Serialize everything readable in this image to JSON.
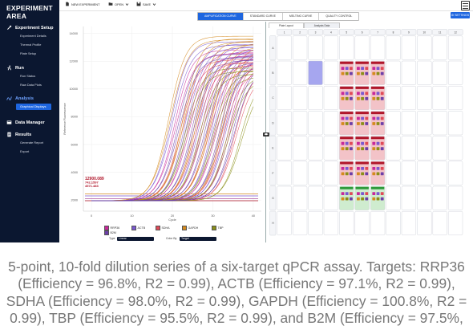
{
  "sidebar": {
    "title_line1": "EXPERIMENT",
    "title_line2": "AREA",
    "sections": [
      {
        "label": "Experiment Setup",
        "icon": "wrench-icon",
        "items": [
          {
            "label": "Experiment Details"
          },
          {
            "label": "Thermal Profile"
          },
          {
            "label": "Plate Setup"
          }
        ]
      },
      {
        "label": "Run",
        "icon": "run-icon",
        "items": [
          {
            "label": "Run Status"
          },
          {
            "label": "Raw Data Plots"
          }
        ]
      },
      {
        "label": "Analysis",
        "icon": "analysis-icon",
        "items": [
          {
            "label": "Graphical Displays",
            "active": true
          }
        ]
      },
      {
        "label": "Data Manager",
        "icon": "database-icon",
        "items": []
      },
      {
        "label": "Results",
        "icon": "results-icon",
        "items": [
          {
            "label": "Generate Report"
          },
          {
            "label": "Export"
          }
        ]
      }
    ]
  },
  "toolbar": {
    "new_label": "NEW EXPERIMENT",
    "open_label": "OPEN",
    "save_label": "SAVE",
    "menu_icon": "hamburger-icon"
  },
  "view_tabs": [
    {
      "label": "AMPLIFICATION CURVE",
      "active": true
    },
    {
      "label": "STANDARD CURVE",
      "active": false
    },
    {
      "label": "MELTING CURVE",
      "active": false
    },
    {
      "label": "QUALITY CONTROL",
      "active": false
    }
  ],
  "settings_label": "SETTINGS",
  "colors": {
    "accent": "#1e66e0",
    "sidebar": "#0b1730",
    "well_selected": "#a6a6ef",
    "red_row": "#f3c3c8",
    "green_row": "#cfeccf"
  },
  "chart_data": {
    "type": "line",
    "xlabel": "Cycle",
    "ylabel": "Reference Fluorescence",
    "x_ticks": [
      0,
      10,
      20,
      30,
      40
    ],
    "y_ticks": [
      2000,
      4000,
      6000,
      8000,
      10000,
      12000,
      14000
    ],
    "xlim": [
      -2,
      42
    ],
    "ylim": [
      1200,
      14500
    ],
    "threshold_labels": [
      "12900.089",
      "742.1597",
      "4571.483"
    ],
    "series": [
      {
        "name": "RRP36",
        "color": "#c8289a",
        "values_ct": [
          16.0,
          19.3,
          22.7,
          26.0,
          29.4
        ],
        "plateau": 12800
      },
      {
        "name": "ACTB",
        "color": "#7a58d0",
        "values_ct": [
          15.2,
          18.6,
          21.9,
          25.3,
          28.6
        ],
        "plateau": 13400
      },
      {
        "name": "SDHA",
        "color": "#e04a58",
        "values_ct": [
          17.5,
          20.9,
          24.2,
          27.6,
          30.9
        ],
        "plateau": 12100
      },
      {
        "name": "GAPDH",
        "color": "#d48a1e",
        "values_ct": [
          14.6,
          17.9,
          21.2,
          24.5,
          27.8
        ],
        "plateau": 13800
      },
      {
        "name": "TBP",
        "color": "#8a8f18",
        "values_ct": [
          18.6,
          22.0,
          25.4,
          28.8,
          32.2
        ],
        "plateau": 11500
      },
      {
        "name": "B2M",
        "color": "#6c3fa8",
        "values_ct": [
          16.8,
          20.2,
          23.6,
          27.0,
          30.4
        ],
        "plateau": 12500
      }
    ],
    "legend_row1": [
      "RRP36",
      "ACTB",
      "SDHA",
      "GAPDH",
      "TBP"
    ],
    "legend_row2": [
      "B2M"
    ]
  },
  "chart_controls": {
    "type_label": "Type",
    "type_value": "Linear",
    "color_by_label": "Color By",
    "color_by_value": "Target"
  },
  "plate": {
    "tabs": [
      {
        "label": "Plate Layout",
        "active": true
      },
      {
        "label": "Analysis Data",
        "active": false
      }
    ],
    "columns": [
      "1",
      "2",
      "3",
      "4",
      "5",
      "6",
      "7",
      "8",
      "9",
      "10",
      "11",
      "12"
    ],
    "rows": [
      "A",
      "B",
      "C",
      "D",
      "E",
      "F",
      "G",
      "H"
    ]
  },
  "caption": {
    "line1": "5-point, 10-fold dilution series of a six-target qPCR assay. Targets: RRP36",
    "line2": "(Efficiency = 96.8%, R2 = 0.99), ACTB (Efficiency = 97.1%, R2 = 0.99),",
    "line3": "SDHA (Efficiency = 98.0%, R2 = 0.99), GAPDH (Efficiency = 100.8%, R2 =",
    "line4": "0.99), TBP (Efficiency = 95.5%, R2 = 0.99), and B2M (Efficiency = 97.5%,"
  }
}
